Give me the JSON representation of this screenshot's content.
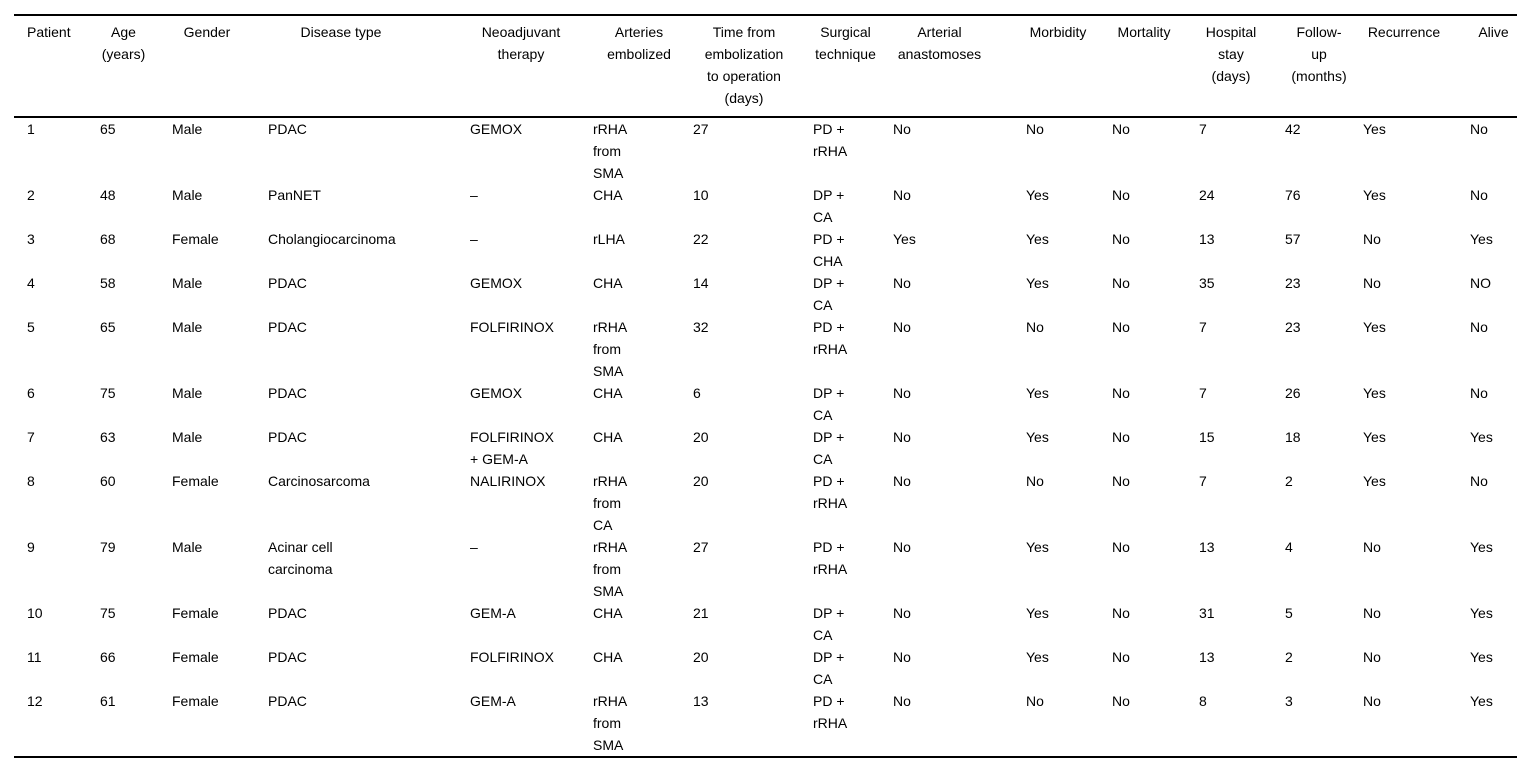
{
  "table": {
    "columns": [
      "Patient",
      "Age\n(years)",
      "Gender",
      "Disease type",
      "Neoadjuvant\ntherapy",
      "Arteries\nembolized",
      "Time from\nembolization\nto operation\n(days)",
      "Surgical\ntechnique",
      "Arterial\nanastomoses",
      "Morbidity",
      "Mortality",
      "Hospital\nstay\n(days)",
      "Follow-\nup\n(months)",
      "Recurrence",
      "Alive"
    ],
    "rows": [
      [
        "1",
        "65",
        "Male",
        "PDAC",
        "GEMOX",
        "rRHA\nfrom\nSMA",
        "27",
        "PD +\nrRHA",
        "No",
        "No",
        "No",
        "7",
        "42",
        "Yes",
        "No"
      ],
      [
        "2",
        "48",
        "Male",
        "PanNET",
        "–",
        "CHA",
        "10",
        "DP +\nCA",
        "No",
        "Yes",
        "No",
        "24",
        "76",
        "Yes",
        "No"
      ],
      [
        "3",
        "68",
        "Female",
        "Cholangiocarcinoma",
        "–",
        "rLHA",
        "22",
        "PD +\nCHA",
        "Yes",
        "Yes",
        "No",
        "13",
        "57",
        "No",
        "Yes"
      ],
      [
        "4",
        "58",
        "Male",
        "PDAC",
        "GEMOX",
        "CHA",
        "14",
        "DP +\nCA",
        "No",
        "Yes",
        "No",
        "35",
        "23",
        "No",
        "NO"
      ],
      [
        "5",
        "65",
        "Male",
        "PDAC",
        "FOLFIRINOX",
        "rRHA\nfrom\nSMA",
        "32",
        "PD +\nrRHA",
        "No",
        "No",
        "No",
        "7",
        "23",
        "Yes",
        "No"
      ],
      [
        "6",
        "75",
        "Male",
        "PDAC",
        "GEMOX",
        "CHA",
        "6",
        "DP +\nCA",
        "No",
        "Yes",
        "No",
        "7",
        "26",
        "Yes",
        "No"
      ],
      [
        "7",
        "63",
        "Male",
        "PDAC",
        "FOLFIRINOX\n+ GEM-A",
        "CHA",
        "20",
        "DP +\nCA",
        "No",
        "Yes",
        "No",
        "15",
        "18",
        "Yes",
        "Yes"
      ],
      [
        "8",
        "60",
        "Female",
        "Carcinosarcoma",
        "NALIRINOX",
        "rRHA\nfrom\nCA",
        "20",
        "PD +\nrRHA",
        "No",
        "No",
        "No",
        "7",
        "2",
        "Yes",
        "No"
      ],
      [
        "9",
        "79",
        "Male",
        "Acinar cell\ncarcinoma",
        "–",
        "rRHA\nfrom\nSMA",
        "27",
        "PD +\nrRHA",
        "No",
        "Yes",
        "No",
        "13",
        "4",
        "No",
        "Yes"
      ],
      [
        "10",
        "75",
        "Female",
        "PDAC",
        "GEM-A",
        "CHA",
        "21",
        "DP +\nCA",
        "No",
        "Yes",
        "No",
        "31",
        "5",
        "No",
        "Yes"
      ],
      [
        "11",
        "66",
        "Female",
        "PDAC",
        "FOLFIRINOX",
        "CHA",
        "20",
        "DP +\nCA",
        "No",
        "Yes",
        "No",
        "13",
        "2",
        "No",
        "Yes"
      ],
      [
        "12",
        "61",
        "Female",
        "PDAC",
        "GEM-A",
        "rRHA\nfrom\nSMA",
        "13",
        "PD +\nrRHA",
        "No",
        "No",
        "No",
        "8",
        "3",
        "No",
        "Yes"
      ]
    ]
  }
}
